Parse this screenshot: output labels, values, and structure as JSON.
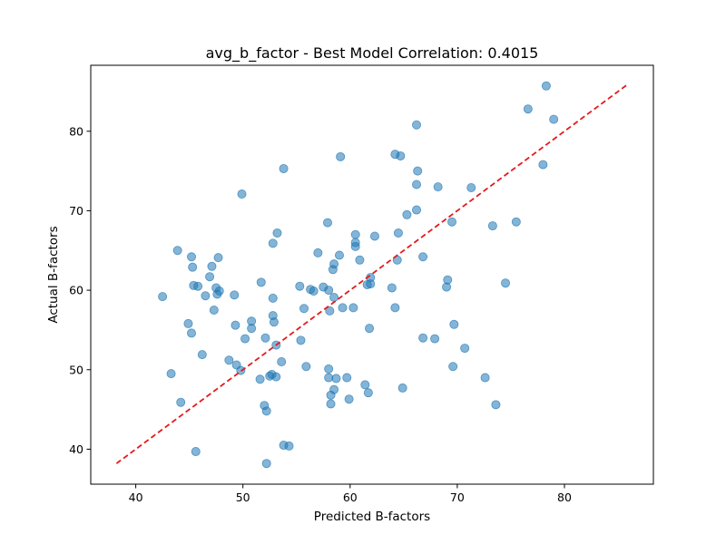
{
  "chart_data": {
    "type": "scatter",
    "title": "avg_b_factor - Best Model Correlation: 0.4015",
    "xlabel": "Predicted B-factors",
    "ylabel": "Actual B-factors",
    "xlim": [
      35.8,
      88.3
    ],
    "ylim": [
      35.6,
      88.3
    ],
    "xticks": [
      40,
      50,
      60,
      70,
      80
    ],
    "yticks": [
      40,
      50,
      60,
      70,
      80
    ],
    "grid": false,
    "point_color": "#1f77b4",
    "reference_line": {
      "from": 38.2,
      "to": 85.8,
      "color": "#e41a1c",
      "style": "dashed"
    },
    "points": [
      [
        42.5,
        59.2
      ],
      [
        43.3,
        49.5
      ],
      [
        43.9,
        65.0
      ],
      [
        44.2,
        45.9
      ],
      [
        44.9,
        55.8
      ],
      [
        45.2,
        54.6
      ],
      [
        45.2,
        64.2
      ],
      [
        45.3,
        62.9
      ],
      [
        45.4,
        60.6
      ],
      [
        45.6,
        39.7
      ],
      [
        45.8,
        60.5
      ],
      [
        46.2,
        51.9
      ],
      [
        46.5,
        59.3
      ],
      [
        46.9,
        61.7
      ],
      [
        47.1,
        63.0
      ],
      [
        47.3,
        57.5
      ],
      [
        47.5,
        60.3
      ],
      [
        47.6,
        59.5
      ],
      [
        47.7,
        64.1
      ],
      [
        47.8,
        59.9
      ],
      [
        48.7,
        51.2
      ],
      [
        49.2,
        59.4
      ],
      [
        49.3,
        55.6
      ],
      [
        49.4,
        50.6
      ],
      [
        49.8,
        49.9
      ],
      [
        49.9,
        72.1
      ],
      [
        50.2,
        53.9
      ],
      [
        50.8,
        56.1
      ],
      [
        50.8,
        55.2
      ],
      [
        51.6,
        48.8
      ],
      [
        51.7,
        61.0
      ],
      [
        52.0,
        45.5
      ],
      [
        52.1,
        54.0
      ],
      [
        52.2,
        44.8
      ],
      [
        52.2,
        38.2
      ],
      [
        52.5,
        49.2
      ],
      [
        52.7,
        49.4
      ],
      [
        52.8,
        65.9
      ],
      [
        52.8,
        59.0
      ],
      [
        52.8,
        56.8
      ],
      [
        52.9,
        56.0
      ],
      [
        53.1,
        53.1
      ],
      [
        53.1,
        49.1
      ],
      [
        53.2,
        67.2
      ],
      [
        53.6,
        51.0
      ],
      [
        53.8,
        75.3
      ],
      [
        53.8,
        40.5
      ],
      [
        54.3,
        40.4
      ],
      [
        55.3,
        60.5
      ],
      [
        55.4,
        53.7
      ],
      [
        55.7,
        57.7
      ],
      [
        55.9,
        50.4
      ],
      [
        56.3,
        60.1
      ],
      [
        56.6,
        59.9
      ],
      [
        57.0,
        64.7
      ],
      [
        57.5,
        60.4
      ],
      [
        57.9,
        68.5
      ],
      [
        58.0,
        60.0
      ],
      [
        58.0,
        50.1
      ],
      [
        58.0,
        49.0
      ],
      [
        58.1,
        57.4
      ],
      [
        58.2,
        46.8
      ],
      [
        58.2,
        45.7
      ],
      [
        58.4,
        62.6
      ],
      [
        58.5,
        63.3
      ],
      [
        58.5,
        59.1
      ],
      [
        58.5,
        47.5
      ],
      [
        58.7,
        48.9
      ],
      [
        59.0,
        64.4
      ],
      [
        59.1,
        76.8
      ],
      [
        59.3,
        57.8
      ],
      [
        59.7,
        49.0
      ],
      [
        59.9,
        46.3
      ],
      [
        60.3,
        57.8
      ],
      [
        60.5,
        65.5
      ],
      [
        60.5,
        66.0
      ],
      [
        60.5,
        67.0
      ],
      [
        60.9,
        63.8
      ],
      [
        61.4,
        48.1
      ],
      [
        61.6,
        60.7
      ],
      [
        61.7,
        47.1
      ],
      [
        61.8,
        55.2
      ],
      [
        61.9,
        60.8
      ],
      [
        61.9,
        61.6
      ],
      [
        62.3,
        66.8
      ],
      [
        63.9,
        60.3
      ],
      [
        64.2,
        77.1
      ],
      [
        64.2,
        57.8
      ],
      [
        64.4,
        63.8
      ],
      [
        64.5,
        67.2
      ],
      [
        64.7,
        76.9
      ],
      [
        64.9,
        47.7
      ],
      [
        65.3,
        69.5
      ],
      [
        66.2,
        80.8
      ],
      [
        66.2,
        73.3
      ],
      [
        66.2,
        70.1
      ],
      [
        66.3,
        75.0
      ],
      [
        66.8,
        64.2
      ],
      [
        66.8,
        54.0
      ],
      [
        67.9,
        53.9
      ],
      [
        68.2,
        73.0
      ],
      [
        69.0,
        60.4
      ],
      [
        69.1,
        61.3
      ],
      [
        69.5,
        68.6
      ],
      [
        69.6,
        50.4
      ],
      [
        69.7,
        55.7
      ],
      [
        70.7,
        52.7
      ],
      [
        71.3,
        72.9
      ],
      [
        72.6,
        49.0
      ],
      [
        73.3,
        68.1
      ],
      [
        73.6,
        45.6
      ],
      [
        74.5,
        60.9
      ],
      [
        75.5,
        68.6
      ],
      [
        76.6,
        82.8
      ],
      [
        78.0,
        75.8
      ],
      [
        78.3,
        85.7
      ],
      [
        79.0,
        81.5
      ]
    ]
  }
}
